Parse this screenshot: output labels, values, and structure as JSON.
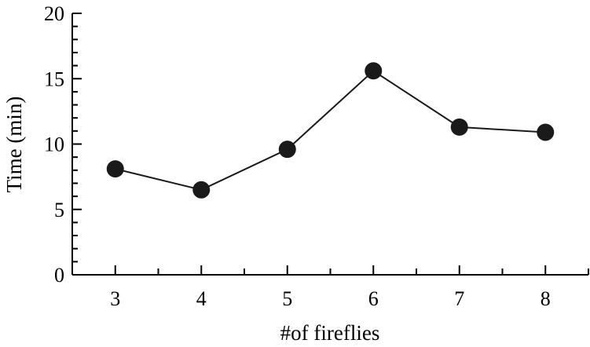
{
  "chart_data": {
    "type": "line",
    "xlabel": "#of fireflies",
    "ylabel": "Time (min)",
    "x": [
      3,
      4,
      5,
      6,
      7,
      8
    ],
    "series": [
      {
        "values": [
          8.1,
          6.5,
          9.6,
          15.6,
          11.3,
          10.9
        ]
      }
    ],
    "xlim": [
      2.5,
      8.5
    ],
    "ylim": [
      0,
      20
    ],
    "xticks": [
      "3",
      "4",
      "5",
      "6",
      "7",
      "8"
    ],
    "yticks": [
      "0",
      "5",
      "10",
      "15",
      "20"
    ],
    "grid": false,
    "legend": "none",
    "line_color": "#1a1a1a",
    "marker_color": "#1a1a1a"
  }
}
